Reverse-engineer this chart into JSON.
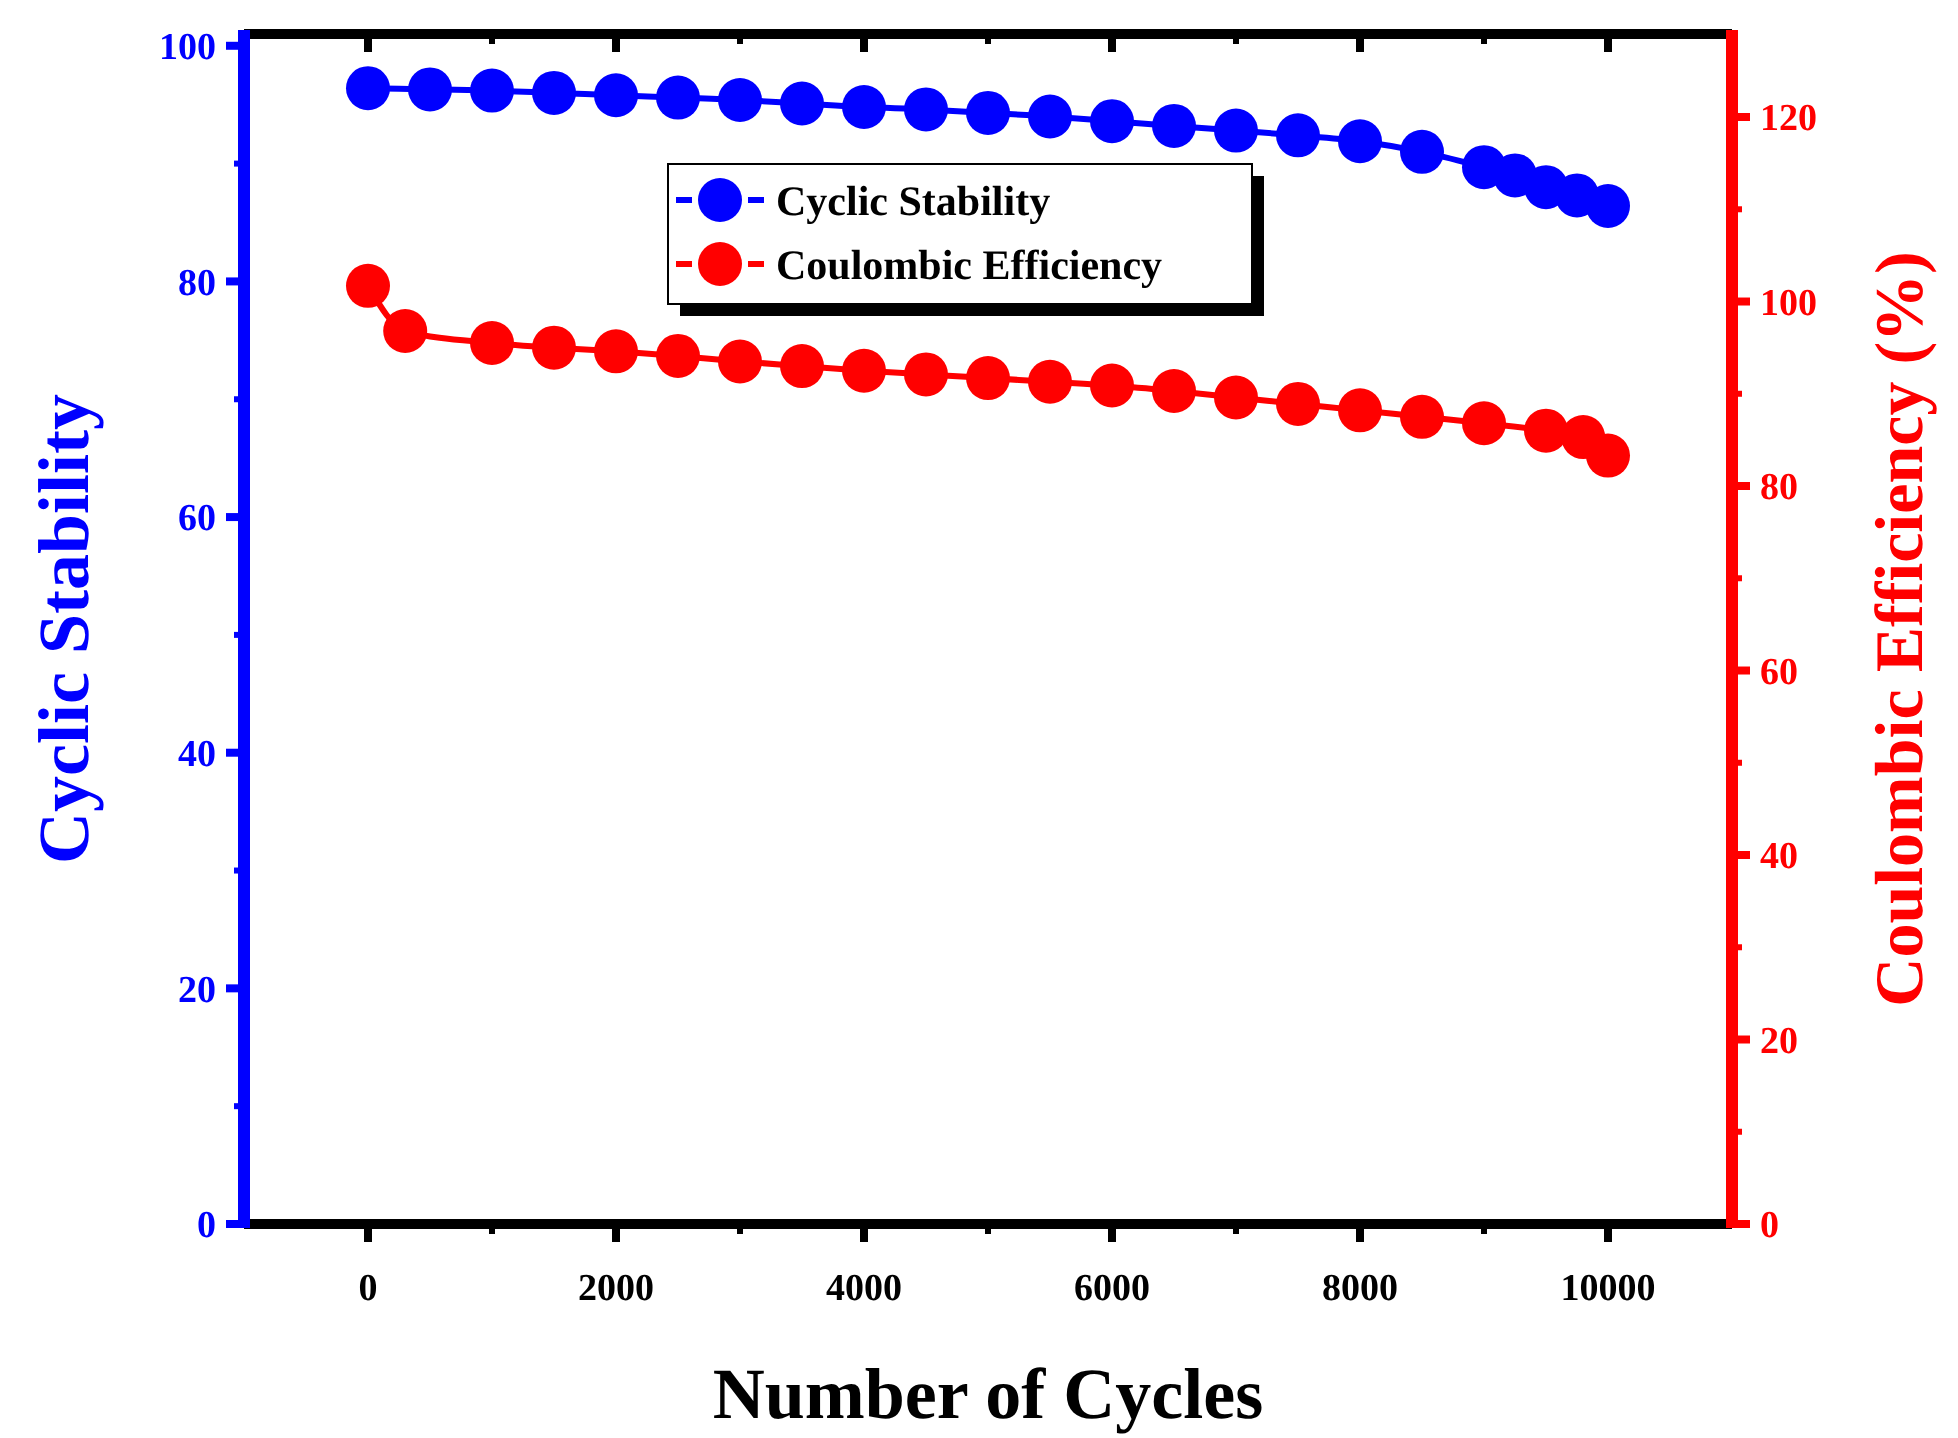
{
  "chart_data": {
    "type": "line",
    "xlabel": "Number of Cycles",
    "ylabel": "Cyclic Stability",
    "y2label": "Coulombic Efficiency (%)",
    "xlim": [
      -1000,
      11000
    ],
    "xticks": [
      0,
      2000,
      4000,
      6000,
      8000,
      10000
    ],
    "ylim": [
      0,
      101
    ],
    "yticks": [
      0,
      20,
      40,
      60,
      80,
      100
    ],
    "y2lim": [
      0,
      129
    ],
    "y2ticks": [
      0,
      20,
      40,
      60,
      80,
      100,
      120
    ],
    "marker": "circle",
    "line_style": "solid",
    "legend": "top",
    "grid": false,
    "series": [
      {
        "name": "Cyclic Stability",
        "color": "#0000ff",
        "x": [
          0,
          500,
          1000,
          1500,
          2000,
          2500,
          3000,
          3500,
          4000,
          4500,
          5000,
          5500,
          6000,
          6500,
          7000,
          7500,
          8000,
          8500,
          9000,
          9250,
          9500,
          9750,
          10000
        ],
        "values": [
          96.4,
          96.3,
          96.2,
          96.0,
          95.8,
          95.6,
          95.4,
          95.1,
          94.8,
          94.6,
          94.3,
          94.0,
          93.6,
          93.2,
          92.8,
          92.4,
          91.9,
          91.0,
          89.7,
          89.0,
          88.0,
          87.3,
          86.4
        ]
      },
      {
        "name": "Coulombic Efficiency",
        "color": "#ff0000",
        "axis": "y2",
        "x": [
          0,
          300,
          1000,
          1500,
          2000,
          2500,
          3000,
          3500,
          4000,
          4500,
          5000,
          5500,
          6000,
          6500,
          7000,
          7500,
          8000,
          8500,
          9000,
          9500,
          9800,
          10000
        ],
        "values": [
          101.7,
          96.8,
          95.5,
          95.0,
          94.6,
          94.1,
          93.5,
          93.0,
          92.5,
          92.1,
          91.7,
          91.3,
          90.9,
          90.3,
          89.6,
          88.9,
          88.2,
          87.5,
          86.8,
          86.0,
          85.3,
          83.3
        ]
      }
    ]
  }
}
